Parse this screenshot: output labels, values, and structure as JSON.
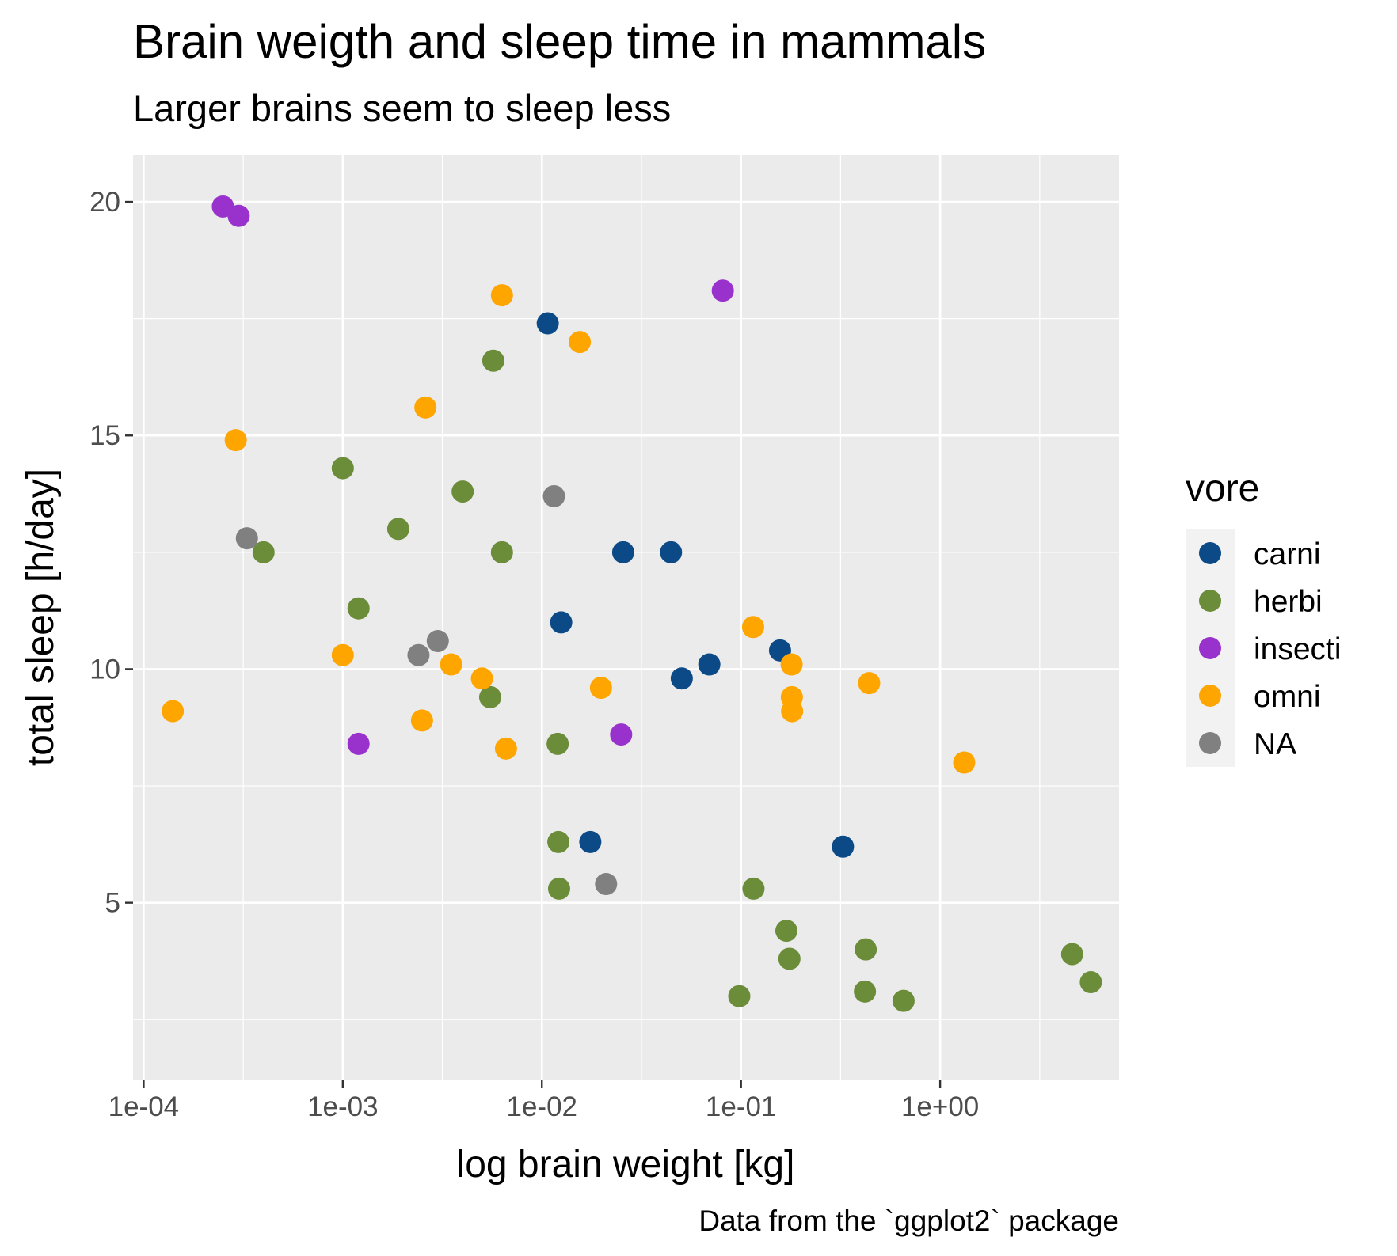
{
  "chart_data": {
    "type": "scatter",
    "title": "Brain weigth and sleep time in mammals",
    "subtitle": "Larger brains seem to sleep less",
    "xlabel": "log brain weight [kg]",
    "ylabel": "total sleep [h/day]",
    "caption": "Data from the `ggplot2` package",
    "x_scale": "log10",
    "xlim": [
      0.0001,
      7.0
    ],
    "ylim": [
      1.2,
      21.0
    ],
    "x_ticks": [
      {
        "value": 0.0001,
        "label": "1e-04"
      },
      {
        "value": 0.001,
        "label": "1e-03"
      },
      {
        "value": 0.01,
        "label": "1e-02"
      },
      {
        "value": 0.1,
        "label": "1e-01"
      },
      {
        "value": 1,
        "label": "1e+00"
      }
    ],
    "y_ticks": [
      {
        "value": 5,
        "label": "5"
      },
      {
        "value": 10,
        "label": "10"
      },
      {
        "value": 15,
        "label": "15"
      },
      {
        "value": 20,
        "label": "20"
      }
    ],
    "grid": true,
    "legend": {
      "title": "vore",
      "position": "right"
    },
    "series": [
      {
        "name": "carni",
        "color": "#0c4a87",
        "points": [
          {
            "x": 0.0107,
            "y": 17.4
          },
          {
            "x": 0.0125,
            "y": 11.0
          },
          {
            "x": 0.0175,
            "y": 6.3
          },
          {
            "x": 0.0256,
            "y": 12.5
          },
          {
            "x": 0.0445,
            "y": 12.5
          },
          {
            "x": 0.0504,
            "y": 9.8
          },
          {
            "x": 0.0693,
            "y": 10.1
          },
          {
            "x": 0.157,
            "y": 10.4
          },
          {
            "x": 0.325,
            "y": 6.2
          }
        ]
      },
      {
        "name": "herbi",
        "color": "#6b8c38",
        "points": [
          {
            "x": 0.0004,
            "y": 12.5
          },
          {
            "x": 0.001,
            "y": 14.3
          },
          {
            "x": 0.0012,
            "y": 11.3
          },
          {
            "x": 0.0019,
            "y": 13.0
          },
          {
            "x": 0.004,
            "y": 13.8
          },
          {
            "x": 0.0055,
            "y": 9.4
          },
          {
            "x": 0.0057,
            "y": 16.6
          },
          {
            "x": 0.0063,
            "y": 12.5
          },
          {
            "x": 0.012,
            "y": 8.4
          },
          {
            "x": 0.0121,
            "y": 6.3
          },
          {
            "x": 0.0122,
            "y": 5.3
          },
          {
            "x": 0.098,
            "y": 3.0
          },
          {
            "x": 0.1155,
            "y": 5.3
          },
          {
            "x": 0.169,
            "y": 4.4
          },
          {
            "x": 0.175,
            "y": 3.8
          },
          {
            "x": 0.419,
            "y": 3.1
          },
          {
            "x": 0.423,
            "y": 4.0
          },
          {
            "x": 0.655,
            "y": 2.9
          },
          {
            "x": 4.603,
            "y": 3.9
          },
          {
            "x": 5.712,
            "y": 3.3
          }
        ]
      },
      {
        "name": "insecti",
        "color": "#9932cc",
        "points": [
          {
            "x": 0.00025,
            "y": 19.9
          },
          {
            "x": 0.0003,
            "y": 19.7
          },
          {
            "x": 0.0012,
            "y": 8.4
          },
          {
            "x": 0.025,
            "y": 8.6
          },
          {
            "x": 0.081,
            "y": 18.1
          }
        ]
      },
      {
        "name": "omni",
        "color": "#ffa500",
        "points": [
          {
            "x": 0.00014,
            "y": 9.1
          },
          {
            "x": 0.00029,
            "y": 14.9
          },
          {
            "x": 0.001,
            "y": 10.3
          },
          {
            "x": 0.0025,
            "y": 8.9
          },
          {
            "x": 0.0026,
            "y": 15.6
          },
          {
            "x": 0.0035,
            "y": 10.1
          },
          {
            "x": 0.005,
            "y": 9.8
          },
          {
            "x": 0.0063,
            "y": 18.0
          },
          {
            "x": 0.0066,
            "y": 8.3
          },
          {
            "x": 0.0155,
            "y": 17.0
          },
          {
            "x": 0.0198,
            "y": 9.6
          },
          {
            "x": 0.115,
            "y": 10.9
          },
          {
            "x": 0.1795,
            "y": 10.1
          },
          {
            "x": 0.18,
            "y": 9.4
          },
          {
            "x": 0.1805,
            "y": 9.1
          },
          {
            "x": 0.44,
            "y": 9.7
          },
          {
            "x": 1.32,
            "y": 8.0
          }
        ]
      },
      {
        "name": "NA",
        "color": "#808080",
        "points": [
          {
            "x": 0.00033,
            "y": 12.8
          },
          {
            "x": 0.0024,
            "y": 10.3
          },
          {
            "x": 0.003,
            "y": 10.6
          },
          {
            "x": 0.0115,
            "y": 13.7
          },
          {
            "x": 0.021,
            "y": 5.4
          }
        ]
      }
    ]
  }
}
